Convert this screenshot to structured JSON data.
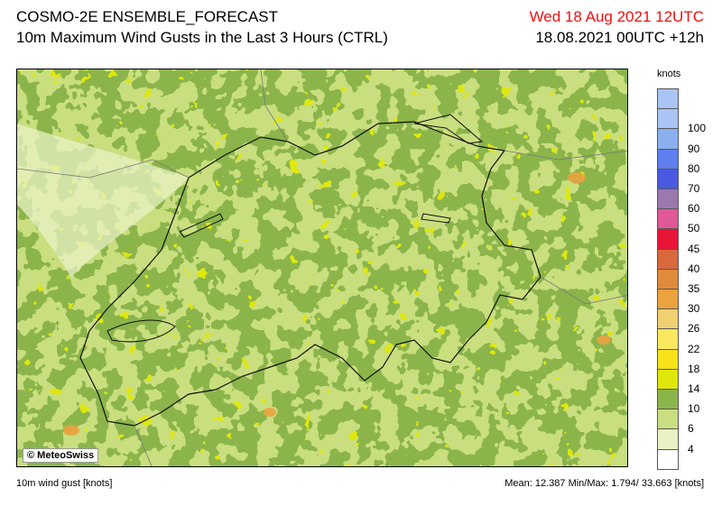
{
  "header": {
    "title_line1": "COSMO-2E ENSEMBLE_FORECAST",
    "title_line2": "10m Maximum Wind Gusts in the Last 3 Hours (CTRL)",
    "valid_date": "Wed 18 Aug 2021 12UTC",
    "run_info": "18.08.2021 00UTC +12h",
    "valid_date_color": "#ee1111"
  },
  "map": {
    "copyright": "© MeteoSwiss"
  },
  "legend": {
    "unit": "knots",
    "levels": [
      {
        "label": "",
        "color": "#a9c4f5"
      },
      {
        "label": "100",
        "color": "#a9c4f5"
      },
      {
        "label": "90",
        "color": "#8ab0ef"
      },
      {
        "label": "80",
        "color": "#5f7ff0"
      },
      {
        "label": "70",
        "color": "#4a5ae0"
      },
      {
        "label": "60",
        "color": "#9b78ad"
      },
      {
        "label": "50",
        "color": "#e05896"
      },
      {
        "label": "45",
        "color": "#e81537"
      },
      {
        "label": "40",
        "color": "#d9683c"
      },
      {
        "label": "35",
        "color": "#e08a3c"
      },
      {
        "label": "30",
        "color": "#eba23f"
      },
      {
        "label": "26",
        "color": "#f1d072"
      },
      {
        "label": "22",
        "color": "#fae85e"
      },
      {
        "label": "18",
        "color": "#f8e21a"
      },
      {
        "label": "14",
        "color": "#dfe70a"
      },
      {
        "label": "10",
        "color": "#8bb54b"
      },
      {
        "label": "6",
        "color": "#c9de7f"
      },
      {
        "label": "4",
        "color": "#e8f2c4"
      },
      {
        "label": "",
        "color": "#ffffff"
      }
    ]
  },
  "footer": {
    "left": "10m wind gust [knots]",
    "right": "Mean:  12.387 Min/Max:   1.794/ 33.663 [knots]"
  }
}
